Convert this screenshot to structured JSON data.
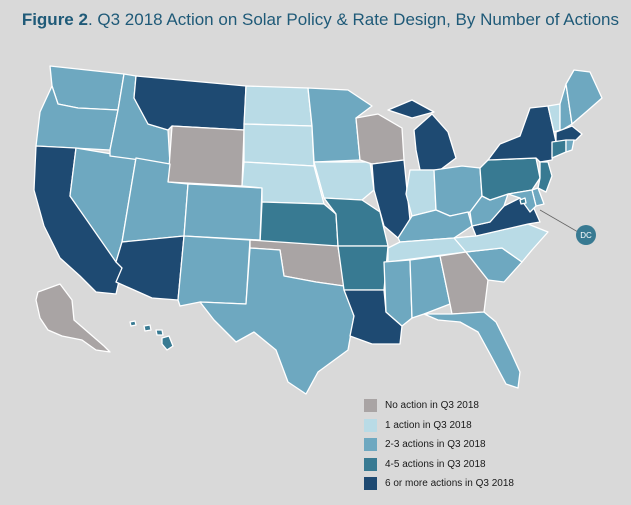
{
  "title": {
    "bold": "Figure 2",
    "rest": ". Q3 2018 Action on Solar Policy & Rate Design, By Number of Actions"
  },
  "colors": {
    "none": "#a9a4a4",
    "one": "#b9dbe6",
    "two_three": "#6ea8c0",
    "four_five": "#387a92",
    "six_plus": "#1e4a72"
  },
  "legend": [
    {
      "key": "none",
      "label": "No action in Q3 2018"
    },
    {
      "key": "one",
      "label": "1 action in Q3 2018"
    },
    {
      "key": "two_three",
      "label": "2-3 actions in Q3 2018"
    },
    {
      "key": "four_five",
      "label": "4-5 actions in Q3 2018"
    },
    {
      "key": "six_plus",
      "label": "6 or more actions in Q3 2018"
    }
  ],
  "dc_label": "DC",
  "states": {
    "WA": "two_three",
    "OR": "two_three",
    "CA": "six_plus",
    "NV": "two_three",
    "ID": "two_three",
    "MT": "six_plus",
    "WY": "none",
    "UT": "two_three",
    "AZ": "six_plus",
    "CO": "two_three",
    "NM": "two_three",
    "ND": "one",
    "SD": "one",
    "NE": "one",
    "KS": "four_five",
    "OK": "none",
    "TX": "two_three",
    "MN": "two_three",
    "IA": "one",
    "MO": "four_five",
    "AR": "four_five",
    "LA": "six_plus",
    "WI": "none",
    "IL": "six_plus",
    "MI": "six_plus",
    "IN": "one",
    "OH": "two_three",
    "KY": "two_three",
    "TN": "one",
    "MS": "two_three",
    "AL": "two_three",
    "GA": "none",
    "FL": "two_three",
    "SC": "two_three",
    "NC": "one",
    "VA": "six_plus",
    "WV": "two_three",
    "PA": "four_five",
    "NY": "six_plus",
    "VT": "one",
    "NH": "two_three",
    "ME": "two_three",
    "MA": "six_plus",
    "CT": "four_five",
    "RI": "two_three",
    "NJ": "four_five",
    "DE": "two_three",
    "MD": "two_three",
    "DC": "four_five",
    "AK": "none",
    "HI": "four_five"
  }
}
